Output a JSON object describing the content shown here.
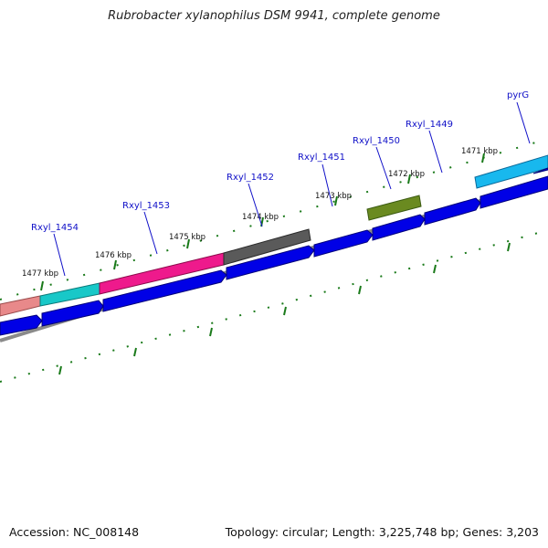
{
  "title": "Rubrobacter xylanophilus DSM 9941, complete genome",
  "footer": {
    "accession": "Accession: NC_008148",
    "summary": "Topology: circular; Length: 3,225,748 bp; Genes: 3,203"
  },
  "kbp_ticks": [
    "1477 kbp",
    "1476 kbp",
    "1475 kbp",
    "1474 kbp",
    "1473 kbp",
    "1472 kbp",
    "1471 kbp"
  ],
  "gene_labels": [
    "Rxyl_1454",
    "Rxyl_1453",
    "Rxyl_1452",
    "Rxyl_1451",
    "Rxyl_1450",
    "Rxyl_1449",
    "pyrG"
  ],
  "colors": {
    "cds": "#0000e6",
    "backbone": "#8a8a8a",
    "ticks": "#1a7a1a",
    "label": "#1010c8",
    "feature_salmon": "#e8898a",
    "feature_cyan": "#18c8c8",
    "feature_pink": "#ee1a8c",
    "feature_gray": "#5a5a5a",
    "feature_olive": "#6a8a20",
    "feature_skyblue": "#18b8ee"
  }
}
